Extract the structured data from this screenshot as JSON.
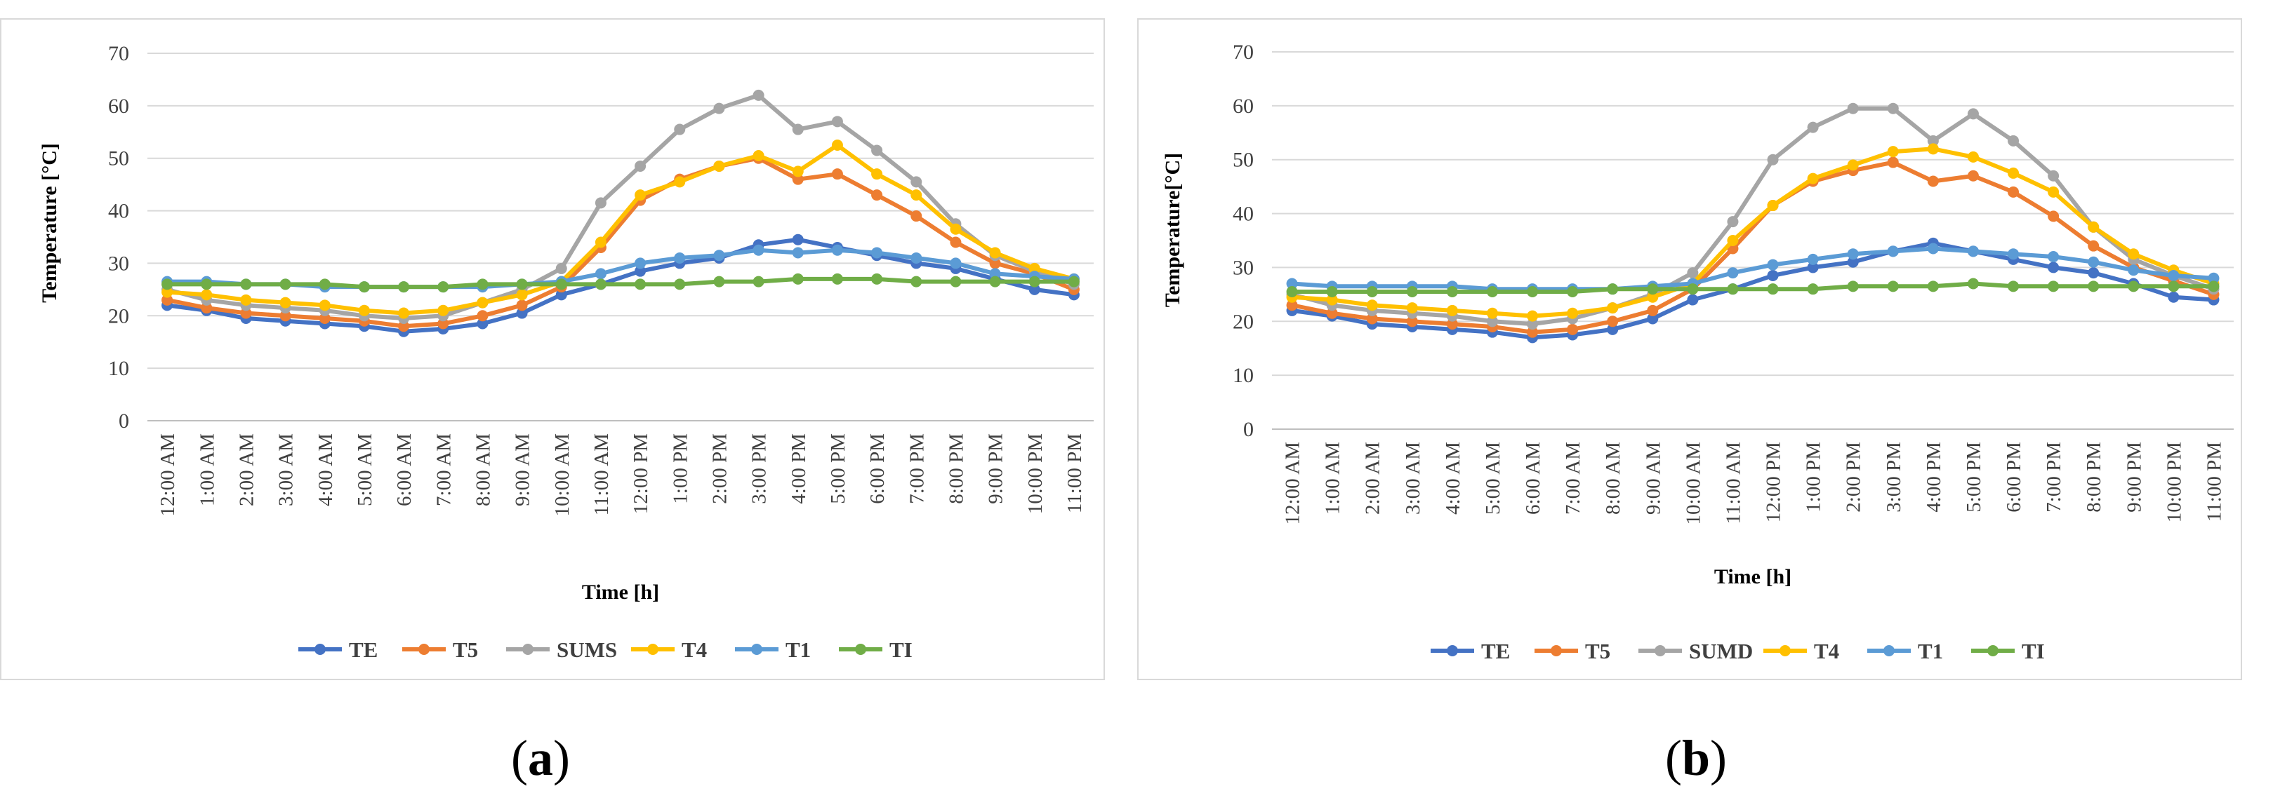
{
  "chart_data": [
    {
      "type": "line",
      "panel": "a",
      "xlabel": "Time [h]",
      "ylabel": "Temperature [°C]",
      "ylim": [
        0,
        70
      ],
      "yticks": [
        0,
        10,
        20,
        30,
        40,
        50,
        60,
        70
      ],
      "grid": true,
      "legend_position": "bottom",
      "categories": [
        "12:00 AM",
        "1:00 AM",
        "2:00 AM",
        "3:00 AM",
        "4:00 AM",
        "5:00 AM",
        "6:00 AM",
        "7:00 AM",
        "8:00 AM",
        "9:00 AM",
        "10:00 AM",
        "11:00 AM",
        "12:00 PM",
        "1:00 PM",
        "2:00 PM",
        "3:00 PM",
        "4:00 PM",
        "5:00 PM",
        "6:00 PM",
        "7:00 PM",
        "8:00 PM",
        "9:00 PM",
        "10:00 PM",
        "11:00 PM"
      ],
      "series": [
        {
          "name": "TE",
          "color": "#4472c4",
          "values": [
            22,
            21,
            19.5,
            19,
            18.5,
            18,
            17,
            17.5,
            18.5,
            20.5,
            24,
            26,
            28.5,
            30,
            31,
            33.5,
            34.5,
            33,
            31.5,
            30,
            29,
            27,
            25,
            24
          ]
        },
        {
          "name": "T5",
          "color": "#ed7d31",
          "values": [
            23,
            21.5,
            20.5,
            20,
            19.5,
            19,
            18,
            18.5,
            20,
            22,
            25.5,
            33,
            42,
            46,
            48.5,
            50,
            46,
            47,
            43,
            39,
            34,
            30,
            28,
            25
          ]
        },
        {
          "name": "SUMS",
          "color": "#a5a5a5",
          "values": [
            25,
            23,
            22,
            21.5,
            21,
            20,
            19.5,
            20,
            22.5,
            25,
            29,
            41.5,
            48.5,
            55.5,
            59.5,
            62,
            55.5,
            57,
            51.5,
            45.5,
            37.5,
            31.5,
            28.5,
            26
          ]
        },
        {
          "name": "T4",
          "color": "#ffc000",
          "values": [
            24.5,
            24,
            23,
            22.5,
            22,
            21,
            20.5,
            21,
            22.5,
            24,
            26.5,
            34,
            43,
            45.5,
            48.5,
            50.5,
            47.5,
            52.5,
            47,
            43,
            36.5,
            32,
            29,
            27
          ]
        },
        {
          "name": "T1",
          "color": "#5b9bd5",
          "values": [
            26.5,
            26.5,
            26,
            26,
            25.5,
            25.5,
            25.5,
            25.5,
            25.5,
            26,
            26.5,
            28,
            30,
            31,
            31.5,
            32.5,
            32,
            32.5,
            32,
            31,
            30,
            28,
            27.5,
            27
          ]
        },
        {
          "name": "TI",
          "color": "#70ad47",
          "values": [
            26,
            26,
            26,
            26,
            26,
            25.5,
            25.5,
            25.5,
            26,
            26,
            26,
            26,
            26,
            26,
            26.5,
            26.5,
            27,
            27,
            27,
            26.5,
            26.5,
            26.5,
            26.5,
            26.5
          ]
        }
      ]
    },
    {
      "type": "line",
      "panel": "b",
      "xlabel": "Time [h]",
      "ylabel": "Temperature[°C]",
      "ylim": [
        0,
        70
      ],
      "yticks": [
        0,
        10,
        20,
        30,
        40,
        50,
        60,
        70
      ],
      "grid": true,
      "legend_position": "bottom",
      "categories": [
        "12:00 AM",
        "1:00 AM",
        "2:00 AM",
        "3:00 AM",
        "4:00 AM",
        "5:00 AM",
        "6:00 AM",
        "7:00 AM",
        "8:00 AM",
        "9:00 AM",
        "10:00 AM",
        "11:00 AM",
        "12:00 PM",
        "1:00 PM",
        "2:00 PM",
        "3:00 PM",
        "4:00 PM",
        "5:00 PM",
        "6:00 PM",
        "7:00 PM",
        "8:00 PM",
        "9:00 PM",
        "10:00 PM",
        "11:00 PM"
      ],
      "series": [
        {
          "name": "TE",
          "color": "#4472c4",
          "values": [
            22,
            21,
            19.5,
            19,
            18.5,
            18,
            17,
            17.5,
            18.5,
            20.5,
            24,
            26,
            28.5,
            30,
            31,
            33,
            34.5,
            33,
            31.5,
            30,
            29,
            27,
            24.5,
            24
          ]
        },
        {
          "name": "T5",
          "color": "#ed7d31",
          "values": [
            23,
            21.5,
            20.5,
            20,
            19.5,
            19,
            18,
            18.5,
            20,
            22,
            26,
            33.5,
            41.5,
            46,
            48,
            49.5,
            46,
            47,
            44,
            39.5,
            34,
            30,
            27.5,
            25
          ]
        },
        {
          "name": "SUMD",
          "color": "#a5a5a5",
          "values": [
            25,
            23,
            22,
            21.5,
            21,
            20,
            19.5,
            20.5,
            22.5,
            25,
            29,
            38.5,
            50,
            56,
            59.5,
            59.5,
            53.5,
            58.5,
            53.5,
            47,
            37.5,
            31.5,
            28.5,
            26
          ]
        },
        {
          "name": "T4",
          "color": "#ffc000",
          "values": [
            24.5,
            24,
            23,
            22.5,
            22,
            21.5,
            21,
            21.5,
            22.5,
            24.5,
            27,
            35,
            41.5,
            46.5,
            49,
            51.5,
            52,
            50.5,
            47.5,
            44,
            37.5,
            32.5,
            29.5,
            27
          ]
        },
        {
          "name": "T1",
          "color": "#5b9bd5",
          "values": [
            27,
            26.5,
            26.5,
            26.5,
            26.5,
            26,
            26,
            26,
            26,
            26.5,
            27,
            29,
            30.5,
            31.5,
            32.5,
            33,
            33.5,
            33,
            32.5,
            32,
            31,
            29.5,
            28.5,
            28
          ]
        },
        {
          "name": "TI",
          "color": "#70ad47",
          "values": [
            25.5,
            25.5,
            25.5,
            25.5,
            25.5,
            25.5,
            25.5,
            25.5,
            26,
            26,
            26,
            26,
            26,
            26,
            26.5,
            26.5,
            26.5,
            27,
            26.5,
            26.5,
            26.5,
            26.5,
            26.5,
            26.5
          ]
        }
      ]
    }
  ],
  "captions": {
    "a": "a",
    "b": "b"
  }
}
